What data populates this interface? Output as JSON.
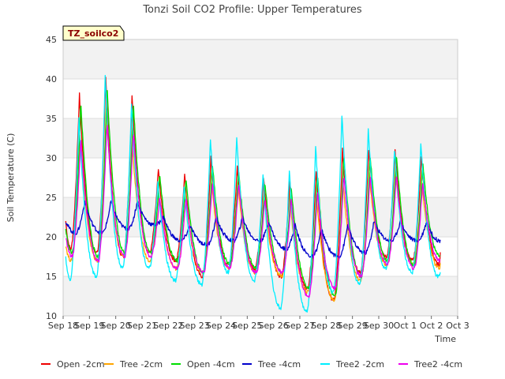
{
  "chart_data": {
    "type": "line",
    "title": "Tonzi Soil CO2 Profile: Upper Temperatures",
    "xlabel": "Time",
    "ylabel": "Soil Temperature (C)",
    "site_label": "TZ_soilco2",
    "xlim": [
      0,
      15
    ],
    "ylim": [
      10,
      45
    ],
    "x_ticks": [
      {
        "v": 0,
        "label": "Sep 18"
      },
      {
        "v": 1,
        "label": "Sep 19"
      },
      {
        "v": 2,
        "label": "Sep 20"
      },
      {
        "v": 3,
        "label": "Sep 21"
      },
      {
        "v": 4,
        "label": "Sep 22"
      },
      {
        "v": 5,
        "label": "Sep 23"
      },
      {
        "v": 6,
        "label": "Sep 24"
      },
      {
        "v": 7,
        "label": "Sep 25"
      },
      {
        "v": 8,
        "label": "Sep 26"
      },
      {
        "v": 9,
        "label": "Sep 27"
      },
      {
        "v": 10,
        "label": "Sep 28"
      },
      {
        "v": 11,
        "label": "Sep 29"
      },
      {
        "v": 12,
        "label": "Sep 30"
      },
      {
        "v": 13,
        "label": "Oct 1"
      },
      {
        "v": 14,
        "label": "Oct 2"
      },
      {
        "v": 15,
        "label": "Oct 3"
      }
    ],
    "y_ticks": [
      10,
      15,
      20,
      25,
      30,
      35,
      40,
      45
    ],
    "grid": true,
    "legend_position": "bottom",
    "x_note": "x in days since Sep 18; series built from daily min/max readings",
    "series": [
      {
        "name": "Open -2cm",
        "color": "#ee0000",
        "lag": 0.0,
        "mins": [
          18.5,
          18,
          17.5,
          18,
          17,
          15,
          16.5,
          16,
          15,
          13.5,
          12,
          15.5,
          17.5,
          17,
          16.5
        ],
        "maxs": [
          38,
          40,
          38,
          28.5,
          28,
          30,
          29,
          27.5,
          27,
          28.5,
          31,
          31,
          31,
          30,
          30
        ],
        "start": 22,
        "end": 18.5
      },
      {
        "name": "Tree -2cm",
        "color": "#ffa500",
        "lag": 0.02,
        "mins": [
          17,
          17,
          17.5,
          17,
          16,
          15.5,
          16,
          15.5,
          15,
          13,
          12,
          14.5,
          16.5,
          16.5,
          16
        ],
        "maxs": [
          33,
          36,
          31,
          26,
          26,
          27,
          27,
          25,
          24,
          25,
          27,
          28,
          28,
          27,
          27
        ],
        "start": 19,
        "end": 17
      },
      {
        "name": "Open -4cm",
        "color": "#00dd00",
        "lag": 0.05,
        "mins": [
          18,
          17.5,
          18,
          18,
          17,
          15.5,
          16.5,
          16,
          15.5,
          13.5,
          12.5,
          15,
          17,
          16.5,
          16.5
        ],
        "maxs": [
          37,
          39,
          37,
          28,
          27.5,
          29.5,
          28.5,
          27,
          26.5,
          28,
          30.5,
          30.5,
          30.5,
          29.5,
          29.5
        ],
        "start": 21,
        "end": 17.5
      },
      {
        "name": "Tree -4cm",
        "color": "#0000cc",
        "lag": 0.2,
        "mins": [
          20.5,
          20.5,
          21,
          21.5,
          19.5,
          19,
          19.5,
          19.5,
          18.5,
          17.5,
          17.5,
          18,
          19.5,
          19.5,
          19.5
        ],
        "maxs": [
          24.5,
          24.5,
          24.5,
          22.5,
          21.5,
          22.5,
          22.5,
          22,
          21.5,
          21,
          21.5,
          22,
          22,
          22,
          22
        ],
        "start": 22,
        "end": 19.5
      },
      {
        "name": "Tree2 -2cm",
        "color": "#00eeff",
        "lag": -0.02,
        "mins": [
          14.5,
          15,
          16,
          16,
          14.5,
          14,
          15.5,
          14.5,
          11,
          10.5,
          13,
          14,
          16,
          15.5,
          15
        ],
        "maxs": [
          35,
          40.5,
          37,
          27,
          26.5,
          32.5,
          32.5,
          28,
          28.5,
          31.5,
          35.5,
          33.5,
          31,
          32,
          32
        ],
        "start": 17.5,
        "end": 15.5
      },
      {
        "name": "Tree2 -4cm",
        "color": "#ee00ee",
        "lag": 0.05,
        "mins": [
          17.5,
          17,
          17.5,
          17.5,
          16,
          15.5,
          16,
          15.5,
          15.5,
          12.5,
          13.5,
          15,
          16.5,
          16,
          15.5
        ],
        "maxs": [
          32.5,
          34.5,
          33.5,
          25,
          25,
          27,
          27,
          25,
          25,
          26,
          28,
          28,
          28,
          27,
          27
        ],
        "start": 20,
        "end": 17
      }
    ]
  }
}
